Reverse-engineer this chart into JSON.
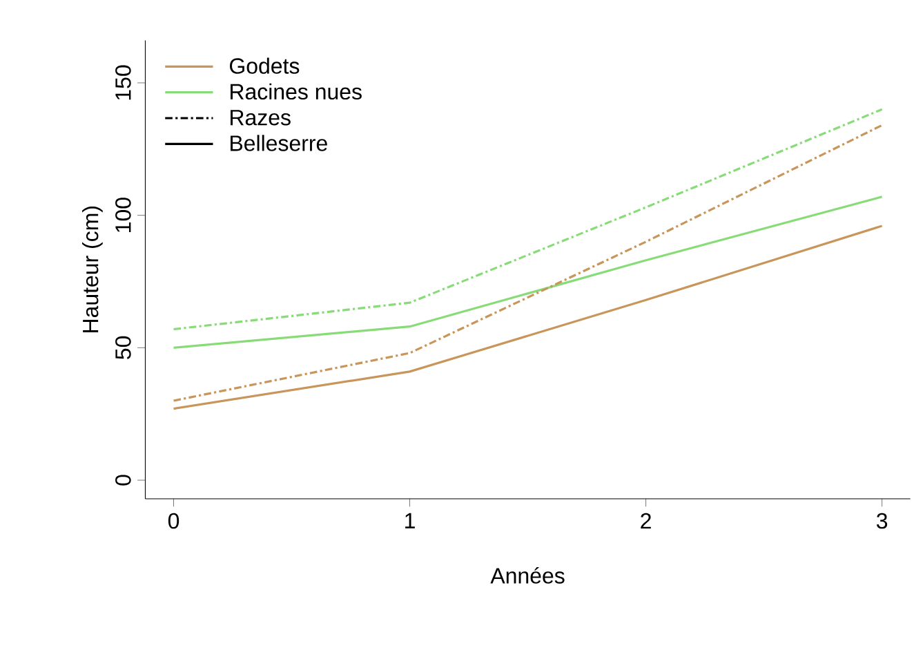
{
  "chart_data": {
    "type": "line",
    "xlabel": "Années",
    "ylabel": "Hauteur (cm)",
    "x": [
      0,
      1,
      2,
      3
    ],
    "series": [
      {
        "color": "#c8955a",
        "line_style": "solid",
        "values": [
          27,
          41,
          68,
          96
        ]
      },
      {
        "color": "#88dc78",
        "line_style": "solid",
        "values": [
          50,
          58,
          83,
          107
        ]
      },
      {
        "color": "#c8955a",
        "line_style": "dashdot",
        "values": [
          30,
          48,
          90,
          134
        ]
      },
      {
        "color": "#88dc78",
        "line_style": "dashdot",
        "values": [
          57,
          67,
          103,
          140
        ]
      }
    ],
    "annotations": [
      "Godets",
      "Racines nues",
      "Razes",
      "Belleserre"
    ],
    "marker": "none",
    "grid": false,
    "xlim": [
      -0.12,
      3.12
    ],
    "ylim": [
      -7,
      166
    ],
    "xticks": [
      0,
      1,
      2,
      3
    ],
    "yticks": [
      0,
      50,
      100,
      150
    ]
  }
}
